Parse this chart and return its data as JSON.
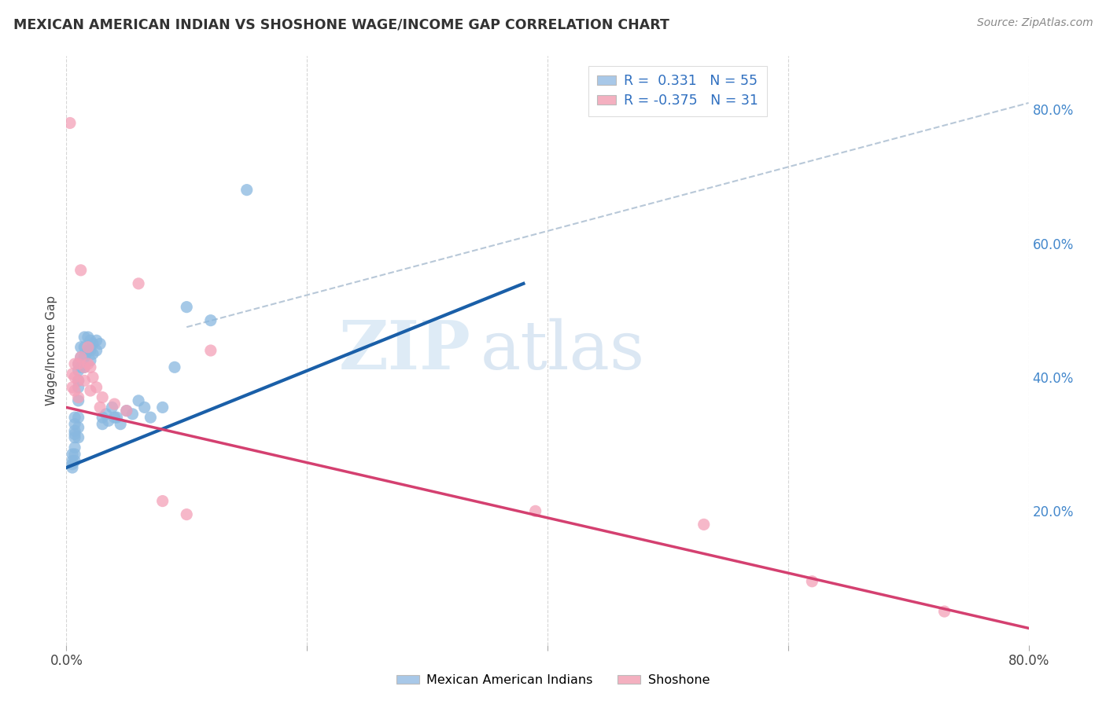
{
  "title": "MEXICAN AMERICAN INDIAN VS SHOSHONE WAGE/INCOME GAP CORRELATION CHART",
  "source": "Source: ZipAtlas.com",
  "ylabel": "Wage/Income Gap",
  "right_yticks": [
    "80.0%",
    "60.0%",
    "40.0%",
    "20.0%"
  ],
  "right_ytick_vals": [
    0.8,
    0.6,
    0.4,
    0.2
  ],
  "watermark_zip": "ZIP",
  "watermark_atlas": "atlas",
  "legend_line1": "R =  0.331   N = 55",
  "legend_line2": "R = -0.375   N = 31",
  "blue_scatter_color": "#89b8e0",
  "pink_scatter_color": "#f4a0b8",
  "blue_line_color": "#1a5fa8",
  "pink_line_color": "#d44070",
  "dashed_line_color": "#b8c8d8",
  "legend_box_blue": "#a8c8e8",
  "legend_box_pink": "#f4b0c0",
  "legend_text_color": "#3070c0",
  "blue_scatter_x": [
    0.005,
    0.005,
    0.005,
    0.005,
    0.007,
    0.007,
    0.007,
    0.007,
    0.007,
    0.007,
    0.007,
    0.007,
    0.01,
    0.01,
    0.01,
    0.01,
    0.01,
    0.01,
    0.01,
    0.01,
    0.012,
    0.012,
    0.012,
    0.015,
    0.015,
    0.015,
    0.015,
    0.018,
    0.018,
    0.02,
    0.02,
    0.02,
    0.022,
    0.022,
    0.025,
    0.025,
    0.028,
    0.03,
    0.03,
    0.033,
    0.035,
    0.038,
    0.04,
    0.042,
    0.045,
    0.05,
    0.055,
    0.06,
    0.065,
    0.07,
    0.08,
    0.09,
    0.1,
    0.12,
    0.15
  ],
  "blue_scatter_y": [
    0.285,
    0.275,
    0.27,
    0.265,
    0.34,
    0.33,
    0.32,
    0.315,
    0.31,
    0.295,
    0.285,
    0.275,
    0.42,
    0.41,
    0.395,
    0.385,
    0.365,
    0.34,
    0.325,
    0.31,
    0.445,
    0.43,
    0.415,
    0.46,
    0.445,
    0.43,
    0.415,
    0.46,
    0.44,
    0.455,
    0.44,
    0.425,
    0.45,
    0.435,
    0.455,
    0.44,
    0.45,
    0.34,
    0.33,
    0.345,
    0.335,
    0.355,
    0.34,
    0.34,
    0.33,
    0.35,
    0.345,
    0.365,
    0.355,
    0.34,
    0.355,
    0.415,
    0.505,
    0.485,
    0.68
  ],
  "pink_scatter_x": [
    0.003,
    0.005,
    0.005,
    0.007,
    0.007,
    0.007,
    0.01,
    0.01,
    0.01,
    0.012,
    0.012,
    0.015,
    0.015,
    0.018,
    0.018,
    0.02,
    0.02,
    0.022,
    0.025,
    0.028,
    0.03,
    0.04,
    0.05,
    0.06,
    0.08,
    0.1,
    0.12,
    0.39,
    0.53,
    0.62,
    0.73
  ],
  "pink_scatter_y": [
    0.78,
    0.405,
    0.385,
    0.42,
    0.4,
    0.38,
    0.42,
    0.395,
    0.37,
    0.56,
    0.43,
    0.415,
    0.395,
    0.445,
    0.42,
    0.415,
    0.38,
    0.4,
    0.385,
    0.355,
    0.37,
    0.36,
    0.35,
    0.54,
    0.215,
    0.195,
    0.44,
    0.2,
    0.18,
    0.095,
    0.05
  ],
  "blue_line_x": [
    0.0,
    0.38
  ],
  "blue_line_y": [
    0.265,
    0.54
  ],
  "pink_line_x": [
    0.0,
    0.8
  ],
  "pink_line_y": [
    0.355,
    0.025
  ],
  "dashed_line_x": [
    0.1,
    0.8
  ],
  "dashed_line_y": [
    0.475,
    0.81
  ],
  "xlim": [
    0.0,
    0.8
  ],
  "ylim": [
    0.0,
    0.88
  ],
  "xtick_positions": [
    0.0,
    0.2,
    0.4,
    0.6,
    0.8
  ],
  "xtick_labels": [
    "0.0%",
    "",
    "",
    "",
    "80.0%"
  ],
  "background_color": "#ffffff",
  "grid_color": "#cccccc",
  "title_color": "#333333",
  "source_color": "#888888",
  "ylabel_color": "#444444",
  "right_axis_color": "#4488cc"
}
